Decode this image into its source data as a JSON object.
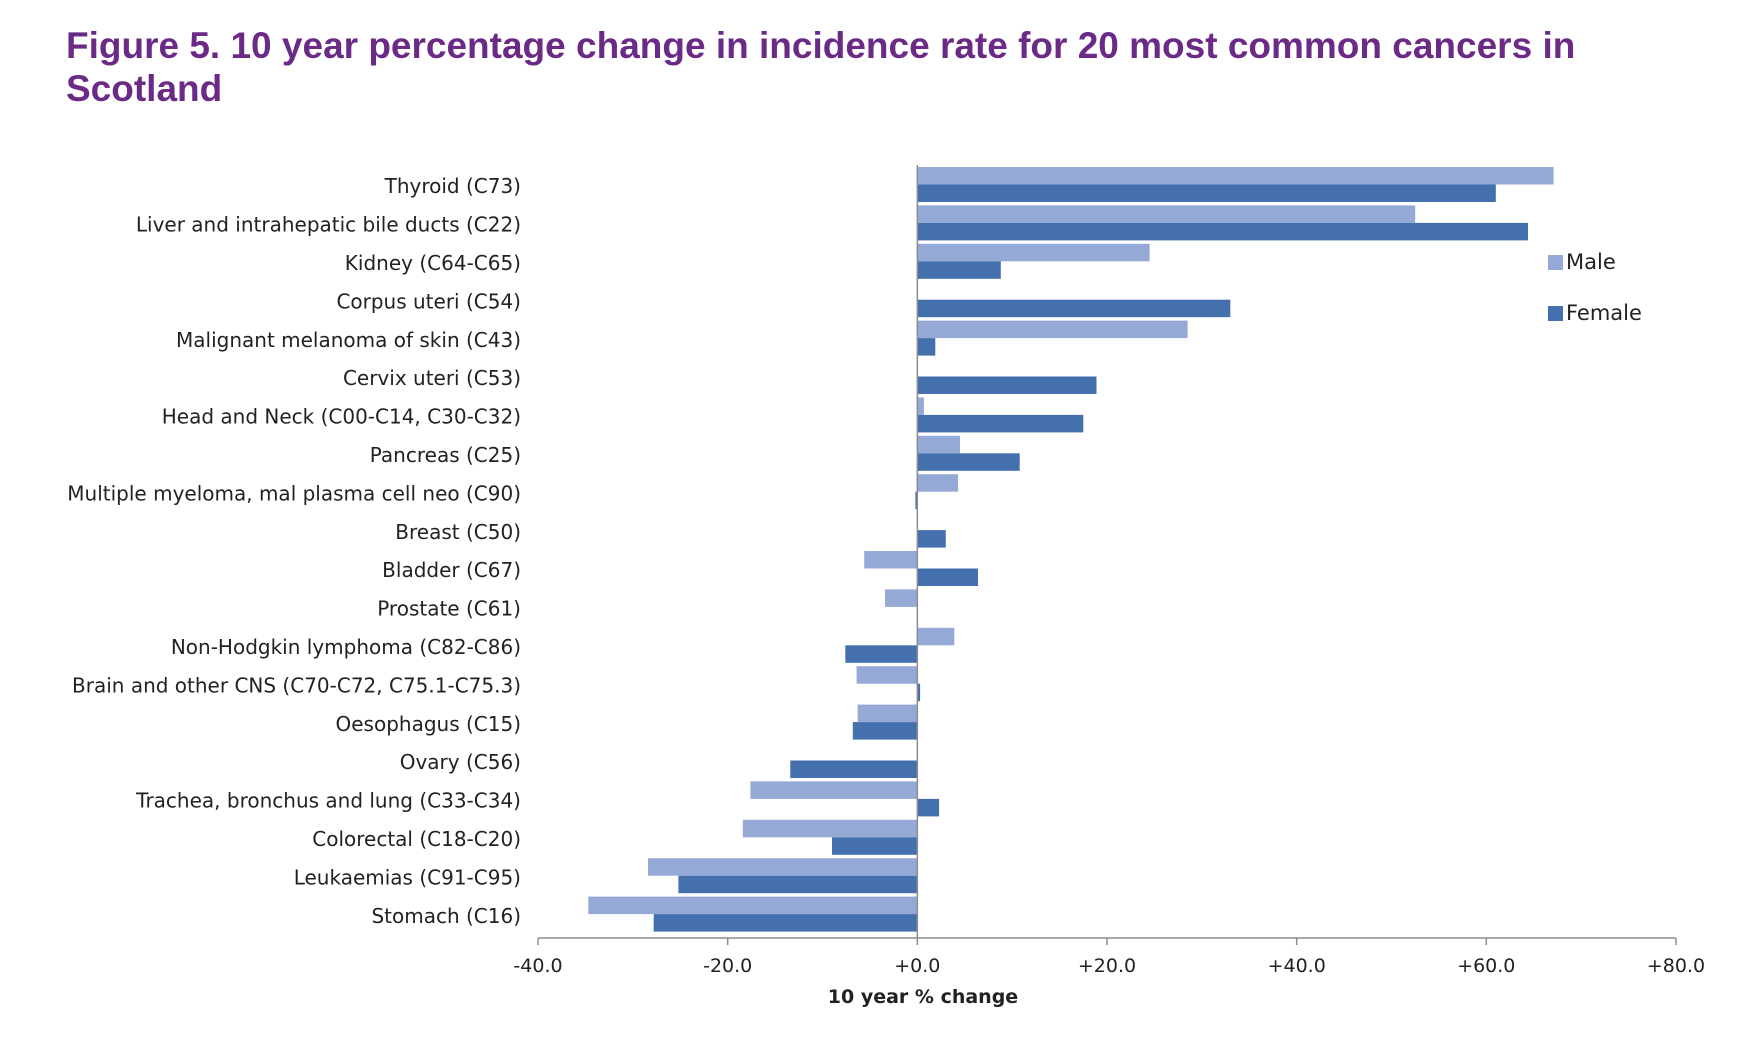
{
  "title": "Figure 5. 10 year percentage change in incidence rate for 20 most common cancers in Scotland",
  "chart_data": {
    "type": "bar",
    "orientation": "horizontal",
    "title": "Figure 5. 10 year percentage change in incidence rate for 20 most common cancers in Scotland",
    "xlabel": "10 year % change",
    "ylabel": "",
    "xlim": [
      -40,
      80
    ],
    "x_ticks": [
      "-40.0",
      "-20.0",
      "+0.0",
      "+20.0",
      "+40.0",
      "+60.0",
      "+80.0"
    ],
    "grid": false,
    "legend_position": "right",
    "categories": [
      "Thyroid (C73)",
      "Liver and intrahepatic bile ducts (C22)",
      "Kidney (C64-C65)",
      "Corpus uteri (C54)",
      "Malignant melanoma of skin (C43)",
      "Cervix uteri (C53)",
      "Head and Neck (C00-C14, C30-C32)",
      "Pancreas (C25)",
      "Multiple myeloma, mal plasma cell neo (C90)",
      "Breast (C50)",
      "Bladder (C67)",
      "Prostate (C61)",
      "Non-Hodgkin lymphoma (C82-C86)",
      "Brain and other CNS (C70-C72, C75.1-C75.3)",
      "Oesophagus (C15)",
      "Ovary (C56)",
      "Trachea, bronchus and lung (C33-C34)",
      "Colorectal (C18-C20)",
      "Leukaemias (C91-C95)",
      "Stomach (C16)"
    ],
    "series": [
      {
        "name": "Male",
        "color": "#95a9d6",
        "values": [
          67.1,
          52.5,
          24.5,
          null,
          28.5,
          null,
          0.7,
          4.5,
          4.3,
          null,
          -5.6,
          -3.4,
          3.9,
          -6.4,
          -6.3,
          null,
          -17.6,
          -18.4,
          -28.4,
          -34.7
        ]
      },
      {
        "name": "Female",
        "color": "#4470ad",
        "values": [
          61.0,
          64.4,
          8.8,
          33.0,
          1.9,
          18.9,
          17.5,
          10.8,
          -0.2,
          3.0,
          6.4,
          null,
          -7.6,
          0.3,
          -6.8,
          -13.4,
          2.3,
          -9.0,
          -25.2,
          -27.8
        ]
      }
    ]
  }
}
